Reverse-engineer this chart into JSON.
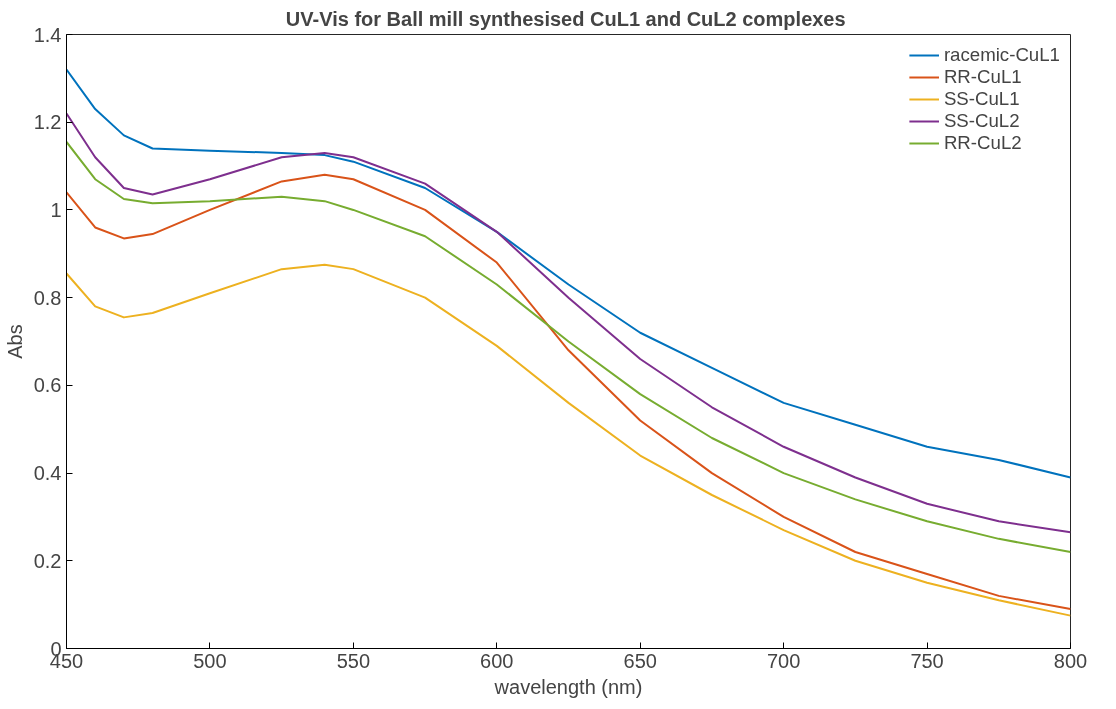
{
  "chart_data": {
    "type": "line",
    "title": "UV-Vis for Ball mill synthesised CuL1 and CuL2  complexes",
    "xlabel": "wavelength (nm)",
    "ylabel": "Abs",
    "x": [
      450,
      460,
      470,
      480,
      500,
      525,
      540,
      550,
      575,
      600,
      625,
      650,
      675,
      700,
      725,
      750,
      775,
      800
    ],
    "series": [
      {
        "name": "racemic-CuL1",
        "color": "#0072bd",
        "values": [
          1.32,
          1.23,
          1.17,
          1.14,
          1.135,
          1.13,
          1.125,
          1.11,
          1.05,
          0.95,
          0.83,
          0.72,
          0.64,
          0.56,
          0.51,
          0.46,
          0.43,
          0.39
        ]
      },
      {
        "name": "RR-CuL1",
        "color": "#d95319",
        "values": [
          1.04,
          0.96,
          0.935,
          0.945,
          1.0,
          1.065,
          1.08,
          1.07,
          1.0,
          0.88,
          0.68,
          0.52,
          0.4,
          0.3,
          0.22,
          0.17,
          0.12,
          0.09
        ]
      },
      {
        "name": "SS-CuL1",
        "color": "#edb120",
        "values": [
          0.855,
          0.78,
          0.755,
          0.765,
          0.81,
          0.865,
          0.875,
          0.865,
          0.8,
          0.69,
          0.56,
          0.44,
          0.35,
          0.27,
          0.2,
          0.15,
          0.11,
          0.075
        ]
      },
      {
        "name": "SS-CuL2",
        "color": "#7e2f8e",
        "values": [
          1.22,
          1.12,
          1.05,
          1.035,
          1.07,
          1.12,
          1.13,
          1.12,
          1.06,
          0.95,
          0.8,
          0.66,
          0.55,
          0.46,
          0.39,
          0.33,
          0.29,
          0.265
        ]
      },
      {
        "name": "RR-CuL2",
        "color": "#77ac30",
        "values": [
          1.155,
          1.07,
          1.025,
          1.015,
          1.02,
          1.03,
          1.02,
          1.0,
          0.94,
          0.83,
          0.7,
          0.58,
          0.48,
          0.4,
          0.34,
          0.29,
          0.25,
          0.22
        ]
      }
    ],
    "xlim": [
      450,
      800
    ],
    "xticks": [
      450,
      500,
      550,
      600,
      650,
      700,
      750,
      800
    ],
    "ylim": [
      0,
      1.4
    ],
    "yticks": [
      0,
      {
        "value": 0.2,
        "label": "0.2"
      },
      {
        "value": 0.4,
        "label": "0.4"
      },
      {
        "value": 0.6,
        "label": "0.6"
      },
      {
        "value": 0.8,
        "label": "0.8"
      },
      1,
      {
        "value": 1.2,
        "label": "1.2"
      },
      {
        "value": 1.4,
        "label": "1.4"
      }
    ],
    "grid": false,
    "legend": "top right"
  }
}
